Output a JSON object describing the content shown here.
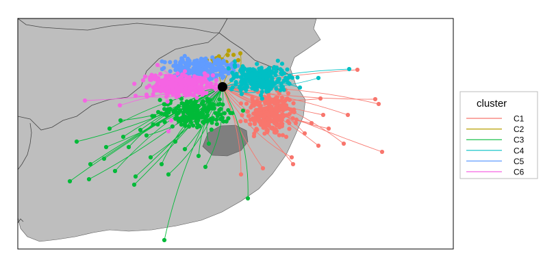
{
  "legend": {
    "title": "cluster",
    "items": [
      {
        "label": "C1",
        "color": "#F8766D"
      },
      {
        "label": "C2",
        "color": "#B79F00"
      },
      {
        "label": "C3",
        "color": "#00BA38"
      },
      {
        "label": "C4",
        "color": "#00BFC4"
      },
      {
        "label": "C5",
        "color": "#619CFF"
      },
      {
        "label": "C6",
        "color": "#F564E3"
      }
    ]
  },
  "colors": {
    "land": "#BEBEBE",
    "lake": "#7F7F7F",
    "sea": "#FFFFFF",
    "origin": "#000000",
    "panel_border": "#000000"
  }
}
